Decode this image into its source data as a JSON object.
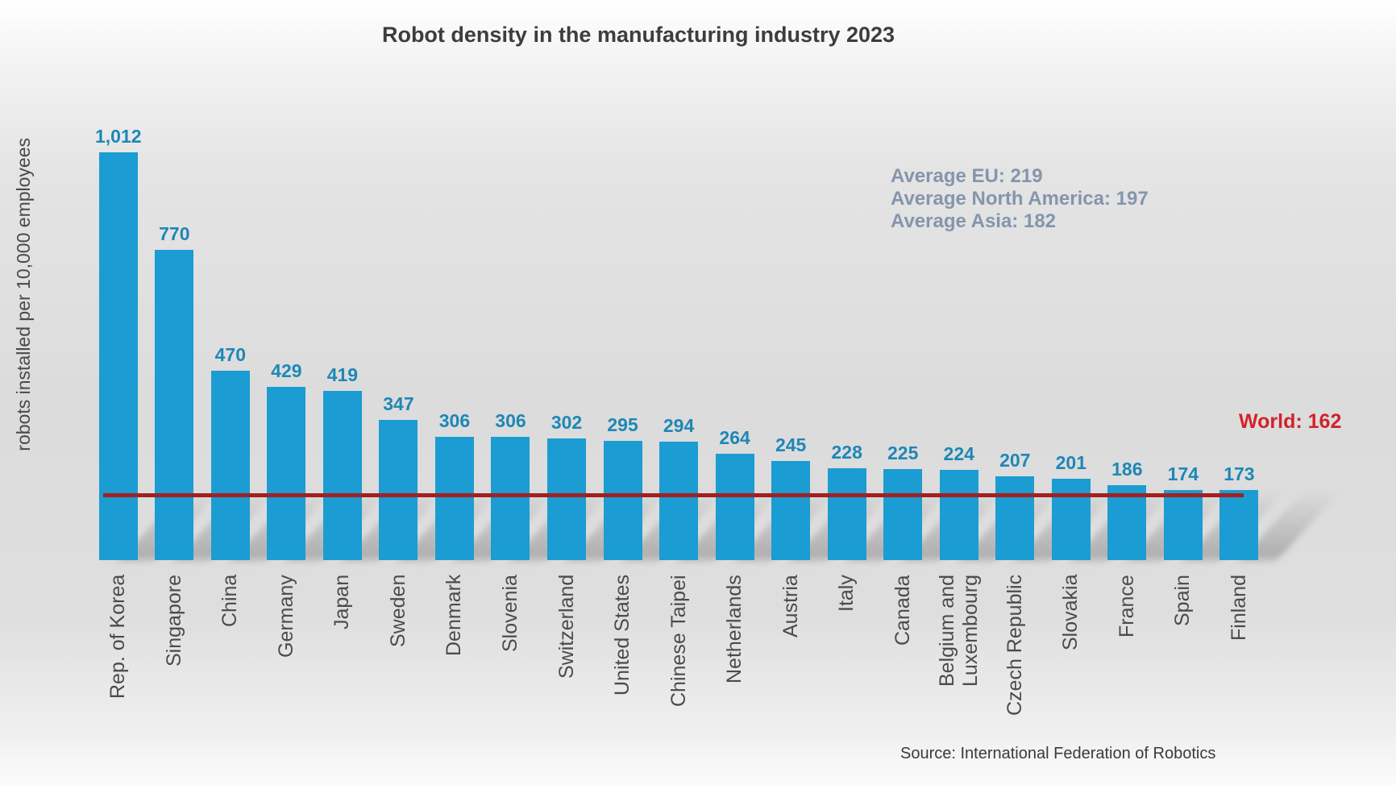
{
  "chart_data": {
    "type": "bar",
    "title": "Robot density in the manufacturing industry 2023",
    "ylabel": "robots installed per 10,000 employees",
    "categories": [
      "Rep. of Korea",
      "Singapore",
      "China",
      "Germany",
      "Japan",
      "Sweden",
      "Denmark",
      "Slovenia",
      "Switzerland",
      "United States",
      "Chinese Taipei",
      "Netherlands",
      "Austria",
      "Italy",
      "Canada",
      "Belgium and Luxembourg",
      "Czech Republic",
      "Slovakia",
      "France",
      "Spain",
      "Finland"
    ],
    "values": [
      1012,
      770,
      470,
      429,
      419,
      347,
      306,
      306,
      302,
      295,
      294,
      264,
      245,
      228,
      225,
      224,
      207,
      201,
      186,
      174,
      173
    ],
    "value_labels": [
      "1,012",
      "770",
      "470",
      "429",
      "419",
      "347",
      "306",
      "306",
      "302",
      "295",
      "294",
      "264",
      "245",
      "228",
      "225",
      "224",
      "207",
      "201",
      "186",
      "174",
      "173"
    ],
    "ylim": [
      0,
      1110
    ],
    "grid": false,
    "legend": false,
    "bar_color": "#1b9cd3",
    "value_label_color": "#1e87b6",
    "reference_line": {
      "value": 162,
      "label": "World: 162",
      "line_color": "#a32020",
      "label_color": "#d2232a"
    },
    "annotations": {
      "lines": [
        "Average EU: 219",
        "Average North America: 197",
        "Average Asia: 182"
      ],
      "color": "#8495ac"
    },
    "source": "Source: International Federation of Robotics"
  }
}
